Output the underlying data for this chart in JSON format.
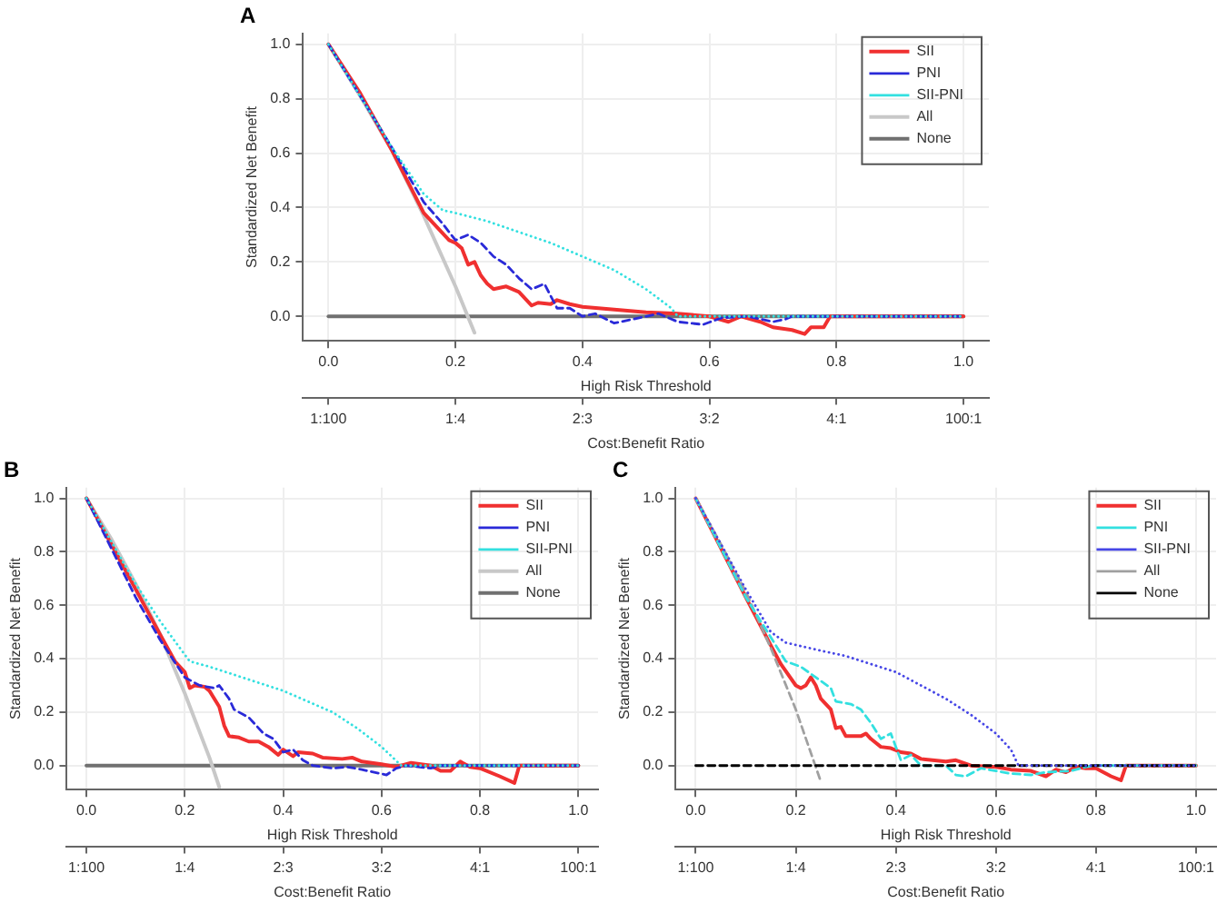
{
  "chart_data": [
    {
      "type": "line",
      "title": "A",
      "xlabel": "High Risk Threshold",
      "ylabel": "Standardized Net Benefit",
      "x2label": "Cost:Benefit Ratio",
      "xlim": [
        -0.04,
        1.04
      ],
      "ylim": [
        -0.09,
        1.04
      ],
      "xticks": [
        {
          "value": 0,
          "label": "0.0"
        },
        {
          "value": 0.2,
          "label": "0.2"
        },
        {
          "value": 0.4,
          "label": "0.4"
        },
        {
          "value": 0.6,
          "label": "0.6"
        },
        {
          "value": 0.8,
          "label": "0.8"
        },
        {
          "value": 1,
          "label": "1.0"
        }
      ],
      "yticks": [
        {
          "value": 0,
          "label": "0.0"
        },
        {
          "value": 0.2,
          "label": "0.2"
        },
        {
          "value": 0.4,
          "label": "0.4"
        },
        {
          "value": 0.6,
          "label": "0.6"
        },
        {
          "value": 0.8,
          "label": "0.8"
        },
        {
          "value": 1,
          "label": "1.0"
        }
      ],
      "annotations": [
        "1:100",
        "1:4",
        "2:3",
        "3:2",
        "4:1",
        "100:1"
      ],
      "grid": true,
      "legend": "top right",
      "marker": "none",
      "series": [
        {
          "name": "SII",
          "color": "#f03030",
          "line_style": "solid",
          "x": [
            0,
            0.05,
            0.1,
            0.15,
            0.17,
            0.19,
            0.2,
            0.21,
            0.22,
            0.23,
            0.24,
            0.25,
            0.26,
            0.28,
            0.3,
            0.32,
            0.33,
            0.35,
            0.36,
            0.38,
            0.4,
            0.45,
            0.5,
            0.55,
            0.6,
            0.63,
            0.65,
            0.68,
            0.7,
            0.73,
            0.75,
            0.76,
            0.78,
            0.79,
            1
          ],
          "values": [
            1,
            0.82,
            0.61,
            0.38,
            0.33,
            0.28,
            0.27,
            0.25,
            0.19,
            0.2,
            0.15,
            0.12,
            0.1,
            0.11,
            0.09,
            0.04,
            0.05,
            0.045,
            0.06,
            0.045,
            0.035,
            0.025,
            0.015,
            0.01,
            0,
            -0.02,
            0,
            -0.02,
            -0.04,
            -0.05,
            -0.065,
            -0.04,
            -0.04,
            0,
            0
          ]
        },
        {
          "name": "PNI",
          "color": "#2a2ad8",
          "line_style": "dashed",
          "x": [
            0,
            0.1,
            0.15,
            0.18,
            0.2,
            0.22,
            0.24,
            0.26,
            0.28,
            0.3,
            0.32,
            0.34,
            0.36,
            0.38,
            0.4,
            0.42,
            0.45,
            0.48,
            0.52,
            0.55,
            0.59,
            0.62,
            0.66,
            0.7,
            0.72,
            0.73,
            1
          ],
          "values": [
            1,
            0.62,
            0.42,
            0.34,
            0.28,
            0.3,
            0.27,
            0.22,
            0.19,
            0.14,
            0.1,
            0.12,
            0.03,
            0.03,
            0,
            0.01,
            -0.025,
            -0.01,
            0.01,
            -0.02,
            -0.03,
            -0.005,
            0,
            -0.02,
            -0.01,
            0,
            0
          ]
        },
        {
          "name": "SII-PNI",
          "color": "#33e0e0",
          "line_style": "dotted",
          "x": [
            0,
            0.1,
            0.15,
            0.18,
            0.2,
            0.25,
            0.3,
            0.35,
            0.4,
            0.45,
            0.5,
            0.54,
            0.55,
            0.6,
            1
          ],
          "values": [
            1,
            0.62,
            0.45,
            0.39,
            0.38,
            0.35,
            0.31,
            0.27,
            0.22,
            0.17,
            0.1,
            0.03,
            0,
            0,
            0
          ]
        },
        {
          "name": "All",
          "color": "#c8c8c8",
          "line_style": "solid",
          "x": [
            0,
            0.05,
            0.1,
            0.15,
            0.2,
            0.23
          ],
          "values": [
            1,
            0.81,
            0.61,
            0.37,
            0.11,
            -0.06
          ]
        },
        {
          "name": "None",
          "color": "#707070",
          "line_style": "solid",
          "x": [
            0,
            1
          ],
          "values": [
            0,
            0
          ]
        }
      ]
    },
    {
      "type": "line",
      "title": "B",
      "xlabel": "High Risk Threshold",
      "ylabel": "Standardized Net Benefit",
      "x2label": "Cost:Benefit Ratio",
      "xlim": [
        -0.04,
        1.04
      ],
      "ylim": [
        -0.09,
        1.04
      ],
      "xticks": [
        {
          "value": 0,
          "label": "0.0"
        },
        {
          "value": 0.2,
          "label": "0.2"
        },
        {
          "value": 0.4,
          "label": "0.4"
        },
        {
          "value": 0.6,
          "label": "0.6"
        },
        {
          "value": 0.8,
          "label": "0.8"
        },
        {
          "value": 1,
          "label": "1.0"
        }
      ],
      "yticks": [
        {
          "value": 0,
          "label": "0.0"
        },
        {
          "value": 0.2,
          "label": "0.2"
        },
        {
          "value": 0.4,
          "label": "0.4"
        },
        {
          "value": 0.6,
          "label": "0.6"
        },
        {
          "value": 0.8,
          "label": "0.8"
        },
        {
          "value": 1,
          "label": "1.0"
        }
      ],
      "annotations": [
        "1:100",
        "1:4",
        "2:3",
        "3:2",
        "4:1",
        "100:1"
      ],
      "grid": true,
      "legend": "top right",
      "marker": "none",
      "series": [
        {
          "name": "SII",
          "color": "#f03030",
          "line_style": "solid",
          "x": [
            0,
            0.1,
            0.15,
            0.18,
            0.2,
            0.21,
            0.22,
            0.24,
            0.25,
            0.27,
            0.28,
            0.29,
            0.31,
            0.33,
            0.35,
            0.37,
            0.39,
            0.4,
            0.42,
            0.43,
            0.46,
            0.48,
            0.52,
            0.54,
            0.56,
            0.6,
            0.63,
            0.66,
            0.7,
            0.72,
            0.74,
            0.76,
            0.78,
            0.8,
            0.84,
            0.87,
            0.88,
            1
          ],
          "values": [
            1,
            0.66,
            0.49,
            0.39,
            0.35,
            0.29,
            0.3,
            0.295,
            0.28,
            0.22,
            0.15,
            0.11,
            0.105,
            0.09,
            0.09,
            0.07,
            0.04,
            0.06,
            0.035,
            0.05,
            0.045,
            0.03,
            0.025,
            0.03,
            0.015,
            0.005,
            -0.005,
            0.01,
            0,
            -0.02,
            -0.02,
            0.015,
            -0.005,
            -0.01,
            -0.04,
            -0.065,
            0,
            0
          ]
        },
        {
          "name": "PNI",
          "color": "#2a2ad8",
          "line_style": "dashed",
          "x": [
            0,
            0.1,
            0.15,
            0.2,
            0.23,
            0.26,
            0.27,
            0.29,
            0.3,
            0.33,
            0.36,
            0.38,
            0.4,
            0.42,
            0.44,
            0.46,
            0.5,
            0.53,
            0.56,
            0.61,
            0.63,
            0.65,
            0.7,
            0.72,
            1
          ],
          "values": [
            1,
            0.63,
            0.47,
            0.33,
            0.3,
            0.29,
            0.3,
            0.25,
            0.21,
            0.18,
            0.12,
            0.1,
            0.05,
            0.06,
            0.02,
            0,
            -0.01,
            -0.005,
            -0.015,
            -0.035,
            -0.01,
            0,
            -0.01,
            0,
            0
          ]
        },
        {
          "name": "SII-PNI",
          "color": "#33e0e0",
          "line_style": "dotted",
          "x": [
            0,
            0.1,
            0.15,
            0.21,
            0.25,
            0.3,
            0.35,
            0.4,
            0.45,
            0.5,
            0.55,
            0.6,
            0.64,
            1
          ],
          "values": [
            1,
            0.68,
            0.54,
            0.39,
            0.37,
            0.34,
            0.31,
            0.28,
            0.24,
            0.2,
            0.14,
            0.07,
            0,
            0
          ]
        },
        {
          "name": "All",
          "color": "#c8c8c8",
          "line_style": "solid",
          "x": [
            0,
            0.05,
            0.1,
            0.15,
            0.2,
            0.25,
            0.27
          ],
          "values": [
            1,
            0.85,
            0.68,
            0.49,
            0.27,
            0.03,
            -0.08
          ]
        },
        {
          "name": "None",
          "color": "#707070",
          "line_style": "solid",
          "x": [
            0,
            1
          ],
          "values": [
            0,
            0
          ]
        }
      ]
    },
    {
      "type": "line",
      "title": "C",
      "xlabel": "High Risk Threshold",
      "ylabel": "Standardized Net Benefit",
      "x2label": "Cost:Benefit Ratio",
      "xlim": [
        -0.04,
        1.04
      ],
      "ylim": [
        -0.09,
        1.04
      ],
      "xticks": [
        {
          "value": 0,
          "label": "0.0"
        },
        {
          "value": 0.2,
          "label": "0.2"
        },
        {
          "value": 0.4,
          "label": "0.4"
        },
        {
          "value": 0.6,
          "label": "0.6"
        },
        {
          "value": 0.8,
          "label": "0.8"
        },
        {
          "value": 1,
          "label": "1.0"
        }
      ],
      "yticks": [
        {
          "value": 0,
          "label": "0.0"
        },
        {
          "value": 0.2,
          "label": "0.2"
        },
        {
          "value": 0.4,
          "label": "0.4"
        },
        {
          "value": 0.6,
          "label": "0.6"
        },
        {
          "value": 0.8,
          "label": "0.8"
        },
        {
          "value": 1,
          "label": "1.0"
        }
      ],
      "annotations": [
        "1:100",
        "1:4",
        "2:3",
        "3:2",
        "4:1",
        "100:1"
      ],
      "grid": true,
      "legend": "top right",
      "marker": "none",
      "series": [
        {
          "name": "SII",
          "color": "#f03030",
          "line_style": "solid",
          "x": [
            0,
            0.1,
            0.15,
            0.17,
            0.2,
            0.21,
            0.22,
            0.23,
            0.24,
            0.25,
            0.27,
            0.28,
            0.29,
            0.3,
            0.33,
            0.34,
            0.35,
            0.37,
            0.39,
            0.41,
            0.43,
            0.45,
            0.5,
            0.52,
            0.55,
            0.6,
            0.63,
            0.67,
            0.7,
            0.72,
            0.74,
            0.76,
            0.78,
            0.8,
            0.83,
            0.85,
            0.86,
            1
          ],
          "values": [
            1,
            0.63,
            0.45,
            0.38,
            0.3,
            0.29,
            0.3,
            0.33,
            0.3,
            0.25,
            0.21,
            0.14,
            0.145,
            0.11,
            0.11,
            0.12,
            0.1,
            0.07,
            0.065,
            0.05,
            0.045,
            0.025,
            0.015,
            0.02,
            0,
            -0.005,
            -0.015,
            -0.02,
            -0.04,
            -0.015,
            -0.025,
            -0.005,
            -0.01,
            -0.01,
            -0.04,
            -0.055,
            0,
            0
          ]
        },
        {
          "name": "PNI",
          "color": "#33e0e0",
          "line_style": "dashed",
          "x": [
            0,
            0.1,
            0.15,
            0.18,
            0.21,
            0.24,
            0.27,
            0.28,
            0.31,
            0.33,
            0.35,
            0.37,
            0.39,
            0.4,
            0.41,
            0.43,
            0.45,
            0.5,
            0.52,
            0.54,
            0.57,
            0.6,
            0.63,
            0.67,
            0.7,
            0.75,
            0.78,
            0.8,
            1
          ],
          "values": [
            1,
            0.63,
            0.48,
            0.39,
            0.37,
            0.33,
            0.29,
            0.24,
            0.23,
            0.21,
            0.16,
            0.1,
            0.12,
            0.07,
            0.02,
            0.04,
            0,
            0,
            -0.035,
            -0.04,
            -0.01,
            -0.02,
            -0.03,
            -0.035,
            -0.025,
            -0.02,
            -0.005,
            0,
            0
          ]
        },
        {
          "name": "SII-PNI",
          "color": "#4646e6",
          "line_style": "dotted",
          "x": [
            0,
            0.1,
            0.15,
            0.18,
            0.25,
            0.3,
            0.35,
            0.4,
            0.45,
            0.5,
            0.55,
            0.6,
            0.63,
            0.645,
            1
          ],
          "values": [
            1,
            0.66,
            0.5,
            0.46,
            0.43,
            0.41,
            0.38,
            0.35,
            0.3,
            0.25,
            0.19,
            0.12,
            0.06,
            0,
            0
          ]
        },
        {
          "name": "All",
          "color": "#a0a0a0",
          "line_style": "dashed",
          "x": [
            0,
            0.05,
            0.1,
            0.15,
            0.2,
            0.25
          ],
          "values": [
            1,
            0.83,
            0.65,
            0.44,
            0.21,
            -0.06
          ]
        },
        {
          "name": "None",
          "color": "#000000",
          "line_style": "dashed",
          "x": [
            0,
            1
          ],
          "values": [
            0,
            0
          ]
        }
      ]
    }
  ]
}
